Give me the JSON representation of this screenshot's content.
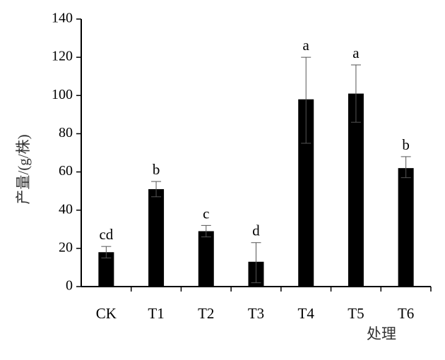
{
  "chart_data": {
    "type": "bar",
    "title": "",
    "xlabel": "处理",
    "ylabel": "产量/(g/株)",
    "ylim": [
      0,
      140
    ],
    "yticks": [
      0,
      20,
      40,
      60,
      80,
      100,
      120,
      140
    ],
    "grid": false,
    "legend": "none",
    "bar_color": "#000000",
    "categories": [
      "CK",
      "T1",
      "T2",
      "T3",
      "T4",
      "T5",
      "T6"
    ],
    "values": [
      18,
      51,
      29,
      13,
      98,
      101,
      62
    ],
    "error_low": [
      15,
      47,
      26,
      2,
      75,
      86,
      57
    ],
    "error_high": [
      21,
      55,
      32,
      23,
      120,
      116,
      68
    ],
    "significance": [
      "cd",
      "b",
      "c",
      "d",
      "a",
      "a",
      "b"
    ]
  }
}
